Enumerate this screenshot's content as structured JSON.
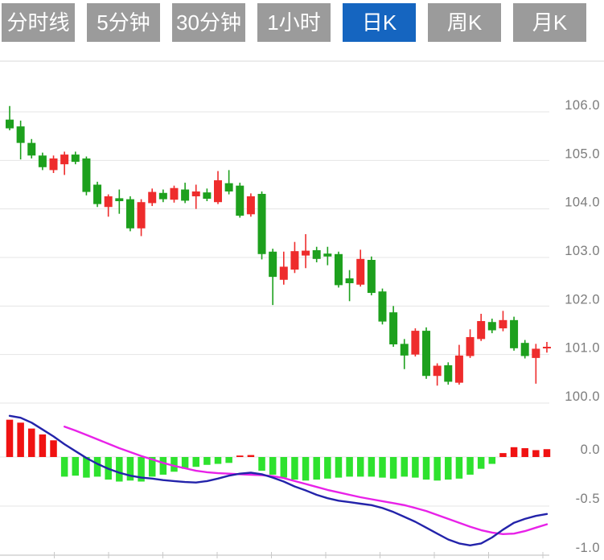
{
  "tabbar": {
    "tabs": [
      {
        "id": "timeline",
        "label": "分时线",
        "active": false
      },
      {
        "id": "5min",
        "label": "5分钟",
        "active": false
      },
      {
        "id": "30min",
        "label": "30分钟",
        "active": false
      },
      {
        "id": "1hour",
        "label": "1小时",
        "active": false
      },
      {
        "id": "daily-k",
        "label": "日K",
        "active": true
      },
      {
        "id": "weekly-k",
        "label": "周K",
        "active": false
      },
      {
        "id": "monthly-k",
        "label": "月K",
        "active": false
      }
    ]
  },
  "colors": {
    "tab_inactive": "#9b9b9b",
    "tab_active": "#1565c0",
    "tab_text": "#ffffff",
    "grid": "#e4e4e4",
    "axis_line": "#d2d2d2",
    "axis_tick": "#c9c9c9",
    "label_text": "#7c7c7c",
    "candle_up": "#ee2c2c",
    "candle_down": "#1da01d",
    "hist_up": "#f01212",
    "hist_down": "#2ee22e",
    "dif_line": "#2323aa",
    "dea_line": "#e822e8"
  },
  "chart_data": [
    {
      "type": "candlestick",
      "panel": "price",
      "title": "",
      "grid": true,
      "ylim": [
        99.9,
        106.6
      ],
      "y_ticks": [
        {
          "value": 106.0,
          "label": "106.0"
        },
        {
          "value": 105.0,
          "label": "105.0"
        },
        {
          "value": 104.0,
          "label": "104.0"
        },
        {
          "value": 103.0,
          "label": "103.0"
        },
        {
          "value": 102.0,
          "label": "102.0"
        },
        {
          "value": 101.0,
          "label": "101.0"
        },
        {
          "value": 100.0,
          "label": "100.0"
        }
      ],
      "up_means": "close >= open (red, Chinese convention)",
      "candles_ohlc": [
        [
          105.84,
          106.12,
          105.62,
          105.66
        ],
        [
          105.7,
          105.82,
          105.02,
          105.36
        ],
        [
          105.36,
          105.44,
          105.04,
          105.1
        ],
        [
          105.1,
          105.16,
          104.8,
          104.86
        ],
        [
          104.8,
          105.1,
          104.74,
          105.04
        ],
        [
          104.92,
          105.18,
          104.7,
          105.12
        ],
        [
          105.12,
          105.18,
          104.92,
          104.97
        ],
        [
          105.04,
          105.08,
          104.28,
          104.35
        ],
        [
          104.5,
          104.56,
          104.04,
          104.1
        ],
        [
          104.04,
          104.3,
          103.84,
          104.26
        ],
        [
          104.22,
          104.4,
          103.9,
          104.16
        ],
        [
          104.2,
          104.26,
          103.54,
          103.6
        ],
        [
          103.6,
          104.2,
          103.44,
          104.14
        ],
        [
          104.12,
          104.42,
          104.06,
          104.35
        ],
        [
          104.33,
          104.4,
          104.14,
          104.2
        ],
        [
          104.19,
          104.48,
          104.13,
          104.43
        ],
        [
          104.4,
          104.54,
          104.12,
          104.17
        ],
        [
          104.26,
          104.5,
          104.0,
          104.36
        ],
        [
          104.34,
          104.42,
          104.16,
          104.21
        ],
        [
          104.14,
          104.78,
          104.1,
          104.59
        ],
        [
          104.53,
          104.8,
          104.3,
          104.36
        ],
        [
          104.48,
          104.54,
          103.82,
          103.86
        ],
        [
          103.89,
          104.32,
          103.84,
          104.26
        ],
        [
          104.31,
          104.36,
          102.96,
          103.07
        ],
        [
          103.12,
          103.18,
          102.02,
          102.6
        ],
        [
          102.54,
          103.12,
          102.44,
          102.81
        ],
        [
          102.75,
          103.32,
          102.68,
          103.13
        ],
        [
          103.04,
          103.48,
          102.78,
          103.14
        ],
        [
          103.15,
          103.22,
          102.9,
          102.97
        ],
        [
          103.08,
          103.22,
          102.84,
          103.02
        ],
        [
          103.07,
          103.12,
          102.38,
          102.43
        ],
        [
          102.57,
          102.74,
          102.1,
          102.47
        ],
        [
          102.44,
          103.16,
          102.4,
          102.97
        ],
        [
          102.95,
          103.02,
          102.22,
          102.27
        ],
        [
          102.3,
          102.36,
          101.62,
          101.68
        ],
        [
          101.87,
          102.0,
          101.16,
          101.21
        ],
        [
          101.22,
          101.32,
          100.7,
          100.98
        ],
        [
          101.0,
          101.54,
          100.96,
          101.49
        ],
        [
          101.49,
          101.56,
          100.5,
          100.56
        ],
        [
          100.56,
          100.82,
          100.36,
          100.77
        ],
        [
          100.78,
          100.84,
          100.38,
          100.44
        ],
        [
          100.42,
          101.2,
          100.38,
          100.98
        ],
        [
          100.97,
          101.52,
          100.93,
          101.36
        ],
        [
          101.32,
          101.84,
          101.28,
          101.69
        ],
        [
          101.67,
          101.74,
          101.44,
          101.5
        ],
        [
          101.54,
          101.9,
          101.48,
          101.71
        ],
        [
          101.71,
          101.78,
          101.08,
          101.13
        ],
        [
          101.24,
          101.3,
          100.92,
          100.97
        ],
        [
          100.93,
          101.22,
          100.4,
          101.12
        ],
        [
          101.13,
          101.26,
          101.04,
          101.16
        ]
      ]
    },
    {
      "type": "bar",
      "panel": "macd-indicator",
      "grid": true,
      "ylim": [
        -1.05,
        0.5
      ],
      "y_ticks": [
        {
          "value": 0.0,
          "label": "0.0"
        },
        {
          "value": -0.5,
          "label": "-0.5"
        },
        {
          "value": -1.0,
          "label": "-1.0"
        }
      ],
      "histogram": [
        0.38,
        0.35,
        0.29,
        0.23,
        0.17,
        -0.2,
        -0.19,
        -0.21,
        -0.2,
        -0.23,
        -0.25,
        -0.24,
        -0.25,
        -0.2,
        -0.18,
        -0.15,
        -0.12,
        -0.1,
        -0.08,
        -0.07,
        -0.06,
        0.015,
        0.02,
        -0.14,
        -0.18,
        -0.21,
        -0.23,
        -0.24,
        -0.23,
        -0.22,
        -0.21,
        -0.2,
        -0.2,
        -0.2,
        -0.21,
        -0.22,
        -0.2,
        -0.21,
        -0.23,
        -0.24,
        -0.23,
        -0.22,
        -0.18,
        -0.12,
        -0.07,
        0.04,
        0.1,
        0.09,
        0.07,
        0.08
      ],
      "series": [
        {
          "name": "DIF",
          "values": [
            0.42,
            0.4,
            0.35,
            0.28,
            0.21,
            0.13,
            0.06,
            -0.01,
            -0.07,
            -0.12,
            -0.16,
            -0.19,
            -0.21,
            -0.22,
            -0.235,
            -0.245,
            -0.255,
            -0.26,
            -0.245,
            -0.22,
            -0.19,
            -0.17,
            -0.16,
            -0.175,
            -0.21,
            -0.25,
            -0.3,
            -0.34,
            -0.385,
            -0.42,
            -0.445,
            -0.46,
            -0.475,
            -0.49,
            -0.52,
            -0.56,
            -0.61,
            -0.66,
            -0.72,
            -0.78,
            -0.84,
            -0.88,
            -0.9,
            -0.88,
            -0.82,
            -0.74,
            -0.67,
            -0.63,
            -0.6,
            -0.58
          ]
        },
        {
          "name": "DEA",
          "values": [
            null,
            null,
            null,
            null,
            null,
            0.31,
            0.27,
            0.225,
            0.18,
            0.135,
            0.09,
            0.05,
            0.01,
            -0.025,
            -0.06,
            -0.09,
            -0.115,
            -0.14,
            -0.155,
            -0.165,
            -0.17,
            -0.175,
            -0.18,
            -0.185,
            -0.195,
            -0.215,
            -0.245,
            -0.275,
            -0.305,
            -0.335,
            -0.36,
            -0.385,
            -0.41,
            -0.43,
            -0.45,
            -0.47,
            -0.49,
            -0.52,
            -0.55,
            -0.59,
            -0.63,
            -0.67,
            -0.71,
            -0.745,
            -0.77,
            -0.785,
            -0.78,
            -0.755,
            -0.72,
            -0.685
          ]
        }
      ]
    }
  ]
}
